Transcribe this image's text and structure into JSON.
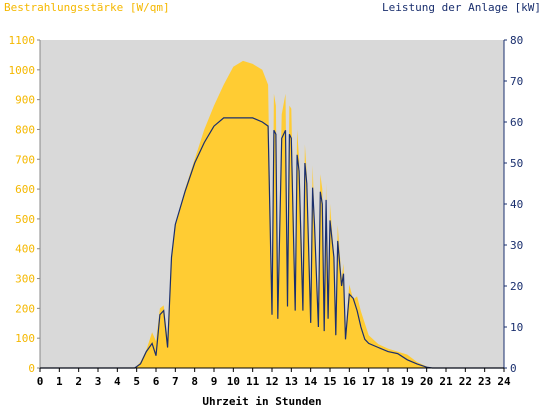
{
  "colors": {
    "plot_background": "#d9d9d9",
    "irradiance_fill": "#ffcc33",
    "power_line": "#1a2f6e",
    "left_axis_text": "#f5b800",
    "right_axis_text": "#1a2f6e",
    "x_axis_text": "#000000"
  },
  "chart_data": {
    "type": "area",
    "title_left": "Bestrahlungsstärke [W/qm]",
    "title_right": "Leistung der Anlage [kW]",
    "xlabel": "Uhrzeit in Stunden",
    "xlim": [
      0,
      24
    ],
    "y_left_lim": [
      0,
      1100
    ],
    "y_right_lim": [
      0,
      80
    ],
    "x_ticks": [
      "0",
      "1",
      "2",
      "3",
      "4",
      "5",
      "6",
      "7",
      "8",
      "9",
      "10",
      "11",
      "12",
      "13",
      "14",
      "15",
      "16",
      "17",
      "18",
      "19",
      "20",
      "21",
      "22",
      "23",
      "24"
    ],
    "y_left_ticks": [
      "0",
      "100",
      "200",
      "300",
      "400",
      "500",
      "600",
      "700",
      "800",
      "900",
      "1000",
      "1100"
    ],
    "y_right_ticks": [
      "0",
      "10",
      "20",
      "30",
      "40",
      "50",
      "60",
      "70",
      "80"
    ],
    "grid": false,
    "series": [
      {
        "name": "Bestrahlungsstärke",
        "style": "filled-area",
        "axis": "left",
        "x": [
          0,
          4.9,
          5.2,
          5.5,
          5.8,
          6.0,
          6.2,
          6.4,
          6.6,
          6.8,
          7.0,
          7.5,
          8.0,
          8.5,
          9.0,
          9.5,
          10.0,
          10.5,
          11.0,
          11.5,
          11.8,
          12.0,
          12.1,
          12.2,
          12.3,
          12.5,
          12.7,
          12.8,
          12.9,
          13.0,
          13.2,
          13.3,
          13.4,
          13.6,
          13.7,
          13.8,
          14.0,
          14.1,
          14.2,
          14.4,
          14.5,
          14.6,
          14.7,
          14.8,
          14.9,
          15.0,
          15.2,
          15.3,
          15.4,
          15.6,
          15.7,
          15.8,
          16.0,
          16.2,
          16.4,
          16.6,
          16.8,
          17.0,
          17.5,
          18.0,
          18.5,
          19.0,
          19.5,
          20.0,
          20.3,
          24
        ],
        "y": [
          0,
          0,
          20,
          60,
          120,
          90,
          200,
          210,
          100,
          380,
          480,
          600,
          700,
          800,
          880,
          950,
          1010,
          1030,
          1020,
          1000,
          950,
          150,
          920,
          880,
          200,
          850,
          920,
          300,
          880,
          870,
          250,
          800,
          700,
          300,
          750,
          650,
          200,
          680,
          500,
          130,
          650,
          600,
          150,
          620,
          200,
          550,
          380,
          130,
          480,
          300,
          350,
          120,
          280,
          230,
          240,
          190,
          150,
          110,
          80,
          65,
          55,
          45,
          20,
          5,
          0,
          0
        ]
      },
      {
        "name": "Leistung der Anlage",
        "style": "line",
        "axis": "right",
        "x": [
          0,
          4.9,
          5.2,
          5.5,
          5.8,
          6.0,
          6.2,
          6.4,
          6.6,
          6.8,
          7.0,
          7.5,
          8.0,
          8.5,
          9.0,
          9.5,
          10.0,
          10.5,
          11.0,
          11.5,
          11.8,
          12.0,
          12.1,
          12.2,
          12.3,
          12.5,
          12.7,
          12.8,
          12.9,
          13.0,
          13.2,
          13.3,
          13.4,
          13.6,
          13.7,
          13.8,
          14.0,
          14.1,
          14.2,
          14.4,
          14.5,
          14.6,
          14.7,
          14.8,
          14.9,
          15.0,
          15.2,
          15.3,
          15.4,
          15.6,
          15.7,
          15.8,
          16.0,
          16.2,
          16.4,
          16.6,
          16.8,
          17.0,
          17.5,
          18.0,
          18.5,
          19.0,
          19.5,
          20.0,
          20.3,
          24
        ],
        "y": [
          0,
          0,
          1,
          4,
          6,
          3,
          13,
          14,
          5,
          27,
          35,
          43,
          50,
          55,
          59,
          61,
          61,
          61,
          61,
          60,
          59,
          13,
          58,
          57,
          12,
          56,
          58,
          15,
          57,
          56,
          14,
          52,
          48,
          14,
          50,
          45,
          11,
          44,
          35,
          10,
          43,
          40,
          9,
          41,
          12,
          36,
          27,
          8,
          31,
          20,
          23,
          7,
          18,
          17,
          14,
          10,
          7,
          6,
          5,
          4,
          3.5,
          2,
          1,
          0.2,
          0,
          0
        ]
      }
    ]
  }
}
